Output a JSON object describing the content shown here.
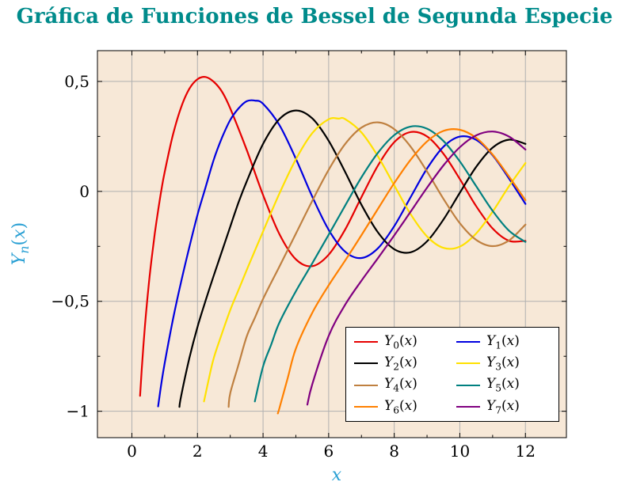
{
  "chart_data": {
    "type": "line",
    "title": "Gráfica de Funciones de Bessel de Segunda Especie",
    "xlabel": "x",
    "ylabel": "Y_n(x)",
    "xlim": [
      -1.05,
      13.25
    ],
    "ylim": [
      -1.12,
      0.64
    ],
    "grid": true,
    "legend_position": "lower right",
    "x_ticks": {
      "values": [
        0,
        2,
        4,
        6,
        8,
        10,
        12
      ],
      "labels": [
        "0",
        "2",
        "4",
        "6",
        "8",
        "10",
        "12"
      ]
    },
    "x_minor_ticks": [
      1,
      3,
      5,
      7,
      9,
      11
    ],
    "y_ticks": {
      "values": [
        0.5,
        0,
        -0.5,
        -1
      ],
      "labels": [
        "0,5",
        "0",
        "−0,5",
        "−1"
      ]
    },
    "y_minor_ticks": [
      0.25,
      -0.25,
      -0.75
    ],
    "colors": {
      "plot_bg": "#f7e8d7",
      "grid": "#b0b0b0",
      "frame": "#000000",
      "title": "#008b8b",
      "axis_label": "#2aa0d4",
      "tick_label": "#000000"
    },
    "series": [
      {
        "name": "Y_0(x)",
        "color": "#e60000",
        "points": [
          [
            0.25,
            -0.93
          ],
          [
            0.3,
            -0.81
          ],
          [
            0.4,
            -0.61
          ],
          [
            0.5,
            -0.445
          ],
          [
            0.6,
            -0.309
          ],
          [
            0.7,
            -0.191
          ],
          [
            0.8,
            -0.087
          ],
          [
            0.9,
            0.006
          ],
          [
            1,
            0.088
          ],
          [
            1.25,
            0.256
          ],
          [
            1.5,
            0.382
          ],
          [
            1.75,
            0.466
          ],
          [
            2,
            0.51
          ],
          [
            2.25,
            0.52
          ],
          [
            2.5,
            0.498
          ],
          [
            2.75,
            0.453
          ],
          [
            3,
            0.377
          ],
          [
            3.5,
            0.189
          ],
          [
            4,
            -0.017
          ],
          [
            4.5,
            -0.195
          ],
          [
            5,
            -0.309
          ],
          [
            5.5,
            -0.34
          ],
          [
            6,
            -0.288
          ],
          [
            6.5,
            -0.174
          ],
          [
            7,
            -0.026
          ],
          [
            7.5,
            0.117
          ],
          [
            8,
            0.224
          ],
          [
            8.5,
            0.27
          ],
          [
            9,
            0.25
          ],
          [
            9.5,
            0.171
          ],
          [
            10,
            0.056
          ],
          [
            10.5,
            -0.068
          ],
          [
            11,
            -0.169
          ],
          [
            11.5,
            -0.225
          ],
          [
            12,
            -0.225
          ]
        ]
      },
      {
        "name": "Y_1(x)",
        "color": "#0000e0",
        "points": [
          [
            0.8,
            -0.978
          ],
          [
            0.9,
            -0.873
          ],
          [
            1,
            -0.781
          ],
          [
            1.25,
            -0.584
          ],
          [
            1.5,
            -0.412
          ],
          [
            1.75,
            -0.255
          ],
          [
            2,
            -0.107
          ],
          [
            2.25,
            0.02
          ],
          [
            2.5,
            0.146
          ],
          [
            2.75,
            0.245
          ],
          [
            3,
            0.325
          ],
          [
            3.25,
            0.377
          ],
          [
            3.5,
            0.41
          ],
          [
            3.75,
            0.413
          ],
          [
            4,
            0.398
          ],
          [
            4.5,
            0.301
          ],
          [
            5,
            0.148
          ],
          [
            5.5,
            -0.024
          ],
          [
            6,
            -0.175
          ],
          [
            6.5,
            -0.274
          ],
          [
            7,
            -0.303
          ],
          [
            7.5,
            -0.259
          ],
          [
            8,
            -0.158
          ],
          [
            8.5,
            -0.026
          ],
          [
            9,
            0.104
          ],
          [
            9.5,
            0.203
          ],
          [
            10,
            0.249
          ],
          [
            10.5,
            0.234
          ],
          [
            11,
            0.164
          ],
          [
            11.5,
            0.058
          ],
          [
            12,
            -0.057
          ]
        ]
      },
      {
        "name": "Y_2(x)",
        "color": "#000000",
        "points": [
          [
            1.45,
            -0.98
          ],
          [
            1.5,
            -0.932
          ],
          [
            1.75,
            -0.76
          ],
          [
            2,
            -0.617
          ],
          [
            2.25,
            -0.496
          ],
          [
            2.5,
            -0.381
          ],
          [
            2.75,
            -0.271
          ],
          [
            3,
            -0.16
          ],
          [
            3.25,
            -0.051
          ],
          [
            3.5,
            0.045
          ],
          [
            4,
            0.216
          ],
          [
            4.5,
            0.329
          ],
          [
            5,
            0.368
          ],
          [
            5.5,
            0.332
          ],
          [
            6,
            0.23
          ],
          [
            6.5,
            0.089
          ],
          [
            7,
            -0.061
          ],
          [
            7.5,
            -0.186
          ],
          [
            8,
            -0.263
          ],
          [
            8.5,
            -0.277
          ],
          [
            9,
            -0.227
          ],
          [
            9.5,
            -0.128
          ],
          [
            10,
            -0.006
          ],
          [
            10.5,
            0.112
          ],
          [
            11,
            0.199
          ],
          [
            11.5,
            0.235
          ],
          [
            12,
            0.216
          ]
        ]
      },
      {
        "name": "Y_3(x)",
        "color": "#ffe100",
        "points": [
          [
            2.2,
            -0.955
          ],
          [
            2.35,
            -0.85
          ],
          [
            2.5,
            -0.756
          ],
          [
            2.75,
            -0.645
          ],
          [
            3,
            -0.539
          ],
          [
            3.25,
            -0.449
          ],
          [
            3.5,
            -0.358
          ],
          [
            3.75,
            -0.27
          ],
          [
            4,
            -0.182
          ],
          [
            4.5,
            -0.009
          ],
          [
            5,
            0.146
          ],
          [
            5.5,
            0.265
          ],
          [
            6,
            0.328
          ],
          [
            6.3,
            0.331
          ],
          [
            6.5,
            0.329
          ],
          [
            7,
            0.268
          ],
          [
            7.5,
            0.16
          ],
          [
            8,
            0.027
          ],
          [
            8.5,
            -0.104
          ],
          [
            9,
            -0.205
          ],
          [
            9.5,
            -0.257
          ],
          [
            10,
            -0.251
          ],
          [
            10.5,
            -0.191
          ],
          [
            11,
            -0.092
          ],
          [
            11.5,
            0.024
          ],
          [
            12,
            0.129
          ]
        ]
      },
      {
        "name": "Y_4(x)",
        "color": "#bf8040",
        "points": [
          [
            2.95,
            -0.98
          ],
          [
            3,
            -0.917
          ],
          [
            3.25,
            -0.789
          ],
          [
            3.5,
            -0.66
          ],
          [
            3.75,
            -0.575
          ],
          [
            4,
            -0.489
          ],
          [
            4.5,
            -0.341
          ],
          [
            5,
            -0.192
          ],
          [
            5.5,
            -0.043
          ],
          [
            6,
            0.098
          ],
          [
            6.5,
            0.215
          ],
          [
            7,
            0.29
          ],
          [
            7.5,
            0.314
          ],
          [
            8,
            0.283
          ],
          [
            8.5,
            0.203
          ],
          [
            9,
            0.09
          ],
          [
            9.5,
            -0.034
          ],
          [
            10,
            -0.145
          ],
          [
            10.5,
            -0.221
          ],
          [
            11,
            -0.249
          ],
          [
            11.5,
            -0.223
          ],
          [
            12,
            -0.151
          ]
        ]
      },
      {
        "name": "Y_5(x)",
        "color": "#008080",
        "points": [
          [
            3.75,
            -0.955
          ],
          [
            4,
            -0.796
          ],
          [
            4.25,
            -0.696
          ],
          [
            4.5,
            -0.596
          ],
          [
            5,
            -0.454
          ],
          [
            5.5,
            -0.327
          ],
          [
            6,
            -0.197
          ],
          [
            6.5,
            -0.065
          ],
          [
            7,
            0.064
          ],
          [
            7.5,
            0.175
          ],
          [
            8,
            0.256
          ],
          [
            8.5,
            0.295
          ],
          [
            9,
            0.285
          ],
          [
            9.5,
            0.229
          ],
          [
            10,
            0.136
          ],
          [
            10.5,
            0.023
          ],
          [
            11,
            -0.089
          ],
          [
            11.5,
            -0.179
          ],
          [
            12,
            -0.23
          ]
        ]
      },
      {
        "name": "Y_6(x)",
        "color": "#ff8000",
        "points": [
          [
            4.45,
            -1.01
          ],
          [
            4.5,
            -0.985
          ],
          [
            4.75,
            -0.85
          ],
          [
            5,
            -0.715
          ],
          [
            5.5,
            -0.552
          ],
          [
            6,
            -0.427
          ],
          [
            6.5,
            -0.315
          ],
          [
            7,
            -0.199
          ],
          [
            7.5,
            -0.08
          ],
          [
            8,
            0.038
          ],
          [
            8.5,
            0.144
          ],
          [
            9,
            0.227
          ],
          [
            9.5,
            0.275
          ],
          [
            10,
            0.28
          ],
          [
            10.5,
            0.243
          ],
          [
            11,
            0.167
          ],
          [
            11.5,
            0.067
          ],
          [
            12,
            -0.04
          ]
        ]
      },
      {
        "name": "Y_7(x)",
        "color": "#800080",
        "points": [
          [
            5.35,
            -0.97
          ],
          [
            5.5,
            -0.877
          ],
          [
            6,
            -0.657
          ],
          [
            6.5,
            -0.516
          ],
          [
            7,
            -0.406
          ],
          [
            7.5,
            -0.304
          ],
          [
            8,
            -0.2
          ],
          [
            8.5,
            -0.092
          ],
          [
            9,
            0.017
          ],
          [
            9.5,
            0.118
          ],
          [
            10,
            0.201
          ],
          [
            10.5,
            0.255
          ],
          [
            11,
            0.272
          ],
          [
            11.5,
            0.249
          ],
          [
            12,
            0.19
          ]
        ]
      }
    ]
  }
}
